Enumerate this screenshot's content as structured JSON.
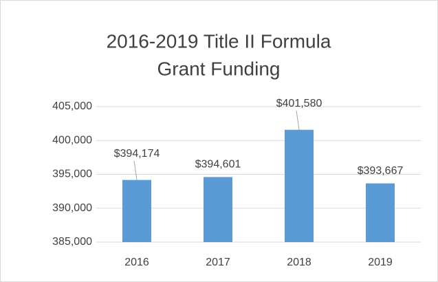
{
  "chart_data": {
    "type": "bar",
    "title": [
      "2016-2019 Title II Formula",
      "Grant Funding"
    ],
    "categories": [
      "2016",
      "2017",
      "2018",
      "2019"
    ],
    "values": [
      394174,
      394601,
      401580,
      393667
    ],
    "value_labels": [
      "$394,174",
      "$394,601",
      "$401,580",
      "$393,667"
    ],
    "color": "#5b9bd5",
    "ylim": [
      385000,
      405000
    ],
    "yticks": [
      {
        "value": 385000,
        "label": "385,000"
      },
      {
        "value": 390000,
        "label": "390,000"
      },
      {
        "value": 395000,
        "label": "395,000"
      },
      {
        "value": 400000,
        "label": "400,000"
      },
      {
        "value": 405000,
        "label": "405,000"
      }
    ],
    "grid": true
  }
}
